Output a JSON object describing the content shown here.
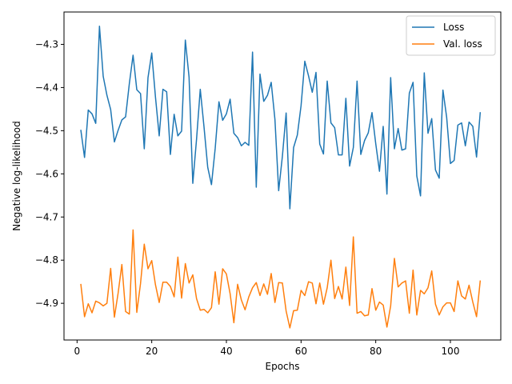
{
  "chart_data": {
    "type": "line",
    "xlabel": "Epochs",
    "ylabel": "Negative log-likelihood",
    "xlim": [
      -3.5,
      113.5
    ],
    "ylim": [
      -4.985,
      -4.225
    ],
    "xticks": [
      0,
      20,
      40,
      60,
      80,
      100
    ],
    "yticks": [
      -4.3,
      -4.4,
      -4.5,
      -4.6,
      -4.7,
      -4.8,
      -4.9
    ],
    "ytick_labels": [
      "−4.3",
      "−4.4",
      "−4.5",
      "−4.6",
      "−4.7",
      "−4.8",
      "−4.9"
    ],
    "grid": false,
    "legend_position": "top-right",
    "x": [
      1,
      2,
      3,
      4,
      5,
      6,
      7,
      8,
      9,
      10,
      11,
      12,
      13,
      14,
      15,
      16,
      17,
      18,
      19,
      20,
      21,
      22,
      23,
      24,
      25,
      26,
      27,
      28,
      29,
      30,
      31,
      32,
      33,
      34,
      35,
      36,
      37,
      38,
      39,
      40,
      41,
      42,
      43,
      44,
      45,
      46,
      47,
      48,
      49,
      50,
      51,
      52,
      53,
      54,
      55,
      56,
      57,
      58,
      59,
      60,
      61,
      62,
      63,
      64,
      65,
      66,
      67,
      68,
      69,
      70,
      71,
      72,
      73,
      74,
      75,
      76,
      77,
      78,
      79,
      80,
      81,
      82,
      83,
      84,
      85,
      86,
      87,
      88,
      89,
      90,
      91,
      92,
      93,
      94,
      95,
      96,
      97,
      98,
      99,
      100,
      101,
      102,
      103,
      104,
      105,
      106,
      107,
      108
    ],
    "series": [
      {
        "name": "Loss",
        "color": "#1f77b4",
        "values": [
          -4.498,
          -4.562,
          -4.452,
          -4.461,
          -4.483,
          -4.258,
          -4.374,
          -4.418,
          -4.451,
          -4.526,
          -4.499,
          -4.475,
          -4.468,
          -4.391,
          -4.325,
          -4.405,
          -4.414,
          -4.542,
          -4.377,
          -4.32,
          -4.422,
          -4.512,
          -4.404,
          -4.41,
          -4.555,
          -4.462,
          -4.512,
          -4.501,
          -4.29,
          -4.376,
          -4.622,
          -4.52,
          -4.404,
          -4.491,
          -4.585,
          -4.625,
          -4.541,
          -4.433,
          -4.476,
          -4.461,
          -4.427,
          -4.506,
          -4.516,
          -4.535,
          -4.527,
          -4.534,
          -4.318,
          -4.631,
          -4.369,
          -4.432,
          -4.418,
          -4.388,
          -4.474,
          -4.639,
          -4.559,
          -4.459,
          -4.681,
          -4.539,
          -4.51,
          -4.442,
          -4.339,
          -4.373,
          -4.411,
          -4.365,
          -4.531,
          -4.554,
          -4.385,
          -4.482,
          -4.493,
          -4.556,
          -4.556,
          -4.425,
          -4.582,
          -4.539,
          -4.385,
          -4.555,
          -4.523,
          -4.505,
          -4.458,
          -4.53,
          -4.594,
          -4.49,
          -4.647,
          -4.377,
          -4.542,
          -4.495,
          -4.545,
          -4.542,
          -4.413,
          -4.388,
          -4.605,
          -4.651,
          -4.366,
          -4.506,
          -4.472,
          -4.591,
          -4.61,
          -4.406,
          -4.469,
          -4.576,
          -4.569,
          -4.487,
          -4.482,
          -4.535,
          -4.48,
          -4.49,
          -4.561,
          -4.457
        ]
      },
      {
        "name": "Val. loss",
        "color": "#ff7f0e",
        "values": [
          -4.855,
          -4.931,
          -4.901,
          -4.922,
          -4.895,
          -4.899,
          -4.906,
          -4.9,
          -4.819,
          -4.932,
          -4.876,
          -4.81,
          -4.919,
          -4.925,
          -4.73,
          -4.921,
          -4.854,
          -4.763,
          -4.82,
          -4.801,
          -4.857,
          -4.898,
          -4.851,
          -4.851,
          -4.861,
          -4.885,
          -4.793,
          -4.888,
          -4.808,
          -4.853,
          -4.834,
          -4.889,
          -4.916,
          -4.914,
          -4.922,
          -4.91,
          -4.827,
          -4.902,
          -4.82,
          -4.832,
          -4.878,
          -4.945,
          -4.856,
          -4.892,
          -4.915,
          -4.885,
          -4.864,
          -4.852,
          -4.882,
          -4.855,
          -4.879,
          -4.831,
          -4.898,
          -4.852,
          -4.853,
          -4.918,
          -4.957,
          -4.917,
          -4.916,
          -4.87,
          -4.882,
          -4.85,
          -4.853,
          -4.901,
          -4.853,
          -4.902,
          -4.864,
          -4.8,
          -4.889,
          -4.861,
          -4.89,
          -4.816,
          -4.905,
          -4.746,
          -4.923,
          -4.919,
          -4.929,
          -4.927,
          -4.866,
          -4.916,
          -4.897,
          -4.904,
          -4.955,
          -4.906,
          -4.796,
          -4.862,
          -4.853,
          -4.848,
          -4.923,
          -4.823,
          -4.927,
          -4.87,
          -4.878,
          -4.864,
          -4.825,
          -4.902,
          -4.927,
          -4.908,
          -4.899,
          -4.899,
          -4.919,
          -4.848,
          -4.883,
          -4.89,
          -4.858,
          -4.897,
          -4.931,
          -4.847
        ]
      }
    ]
  }
}
